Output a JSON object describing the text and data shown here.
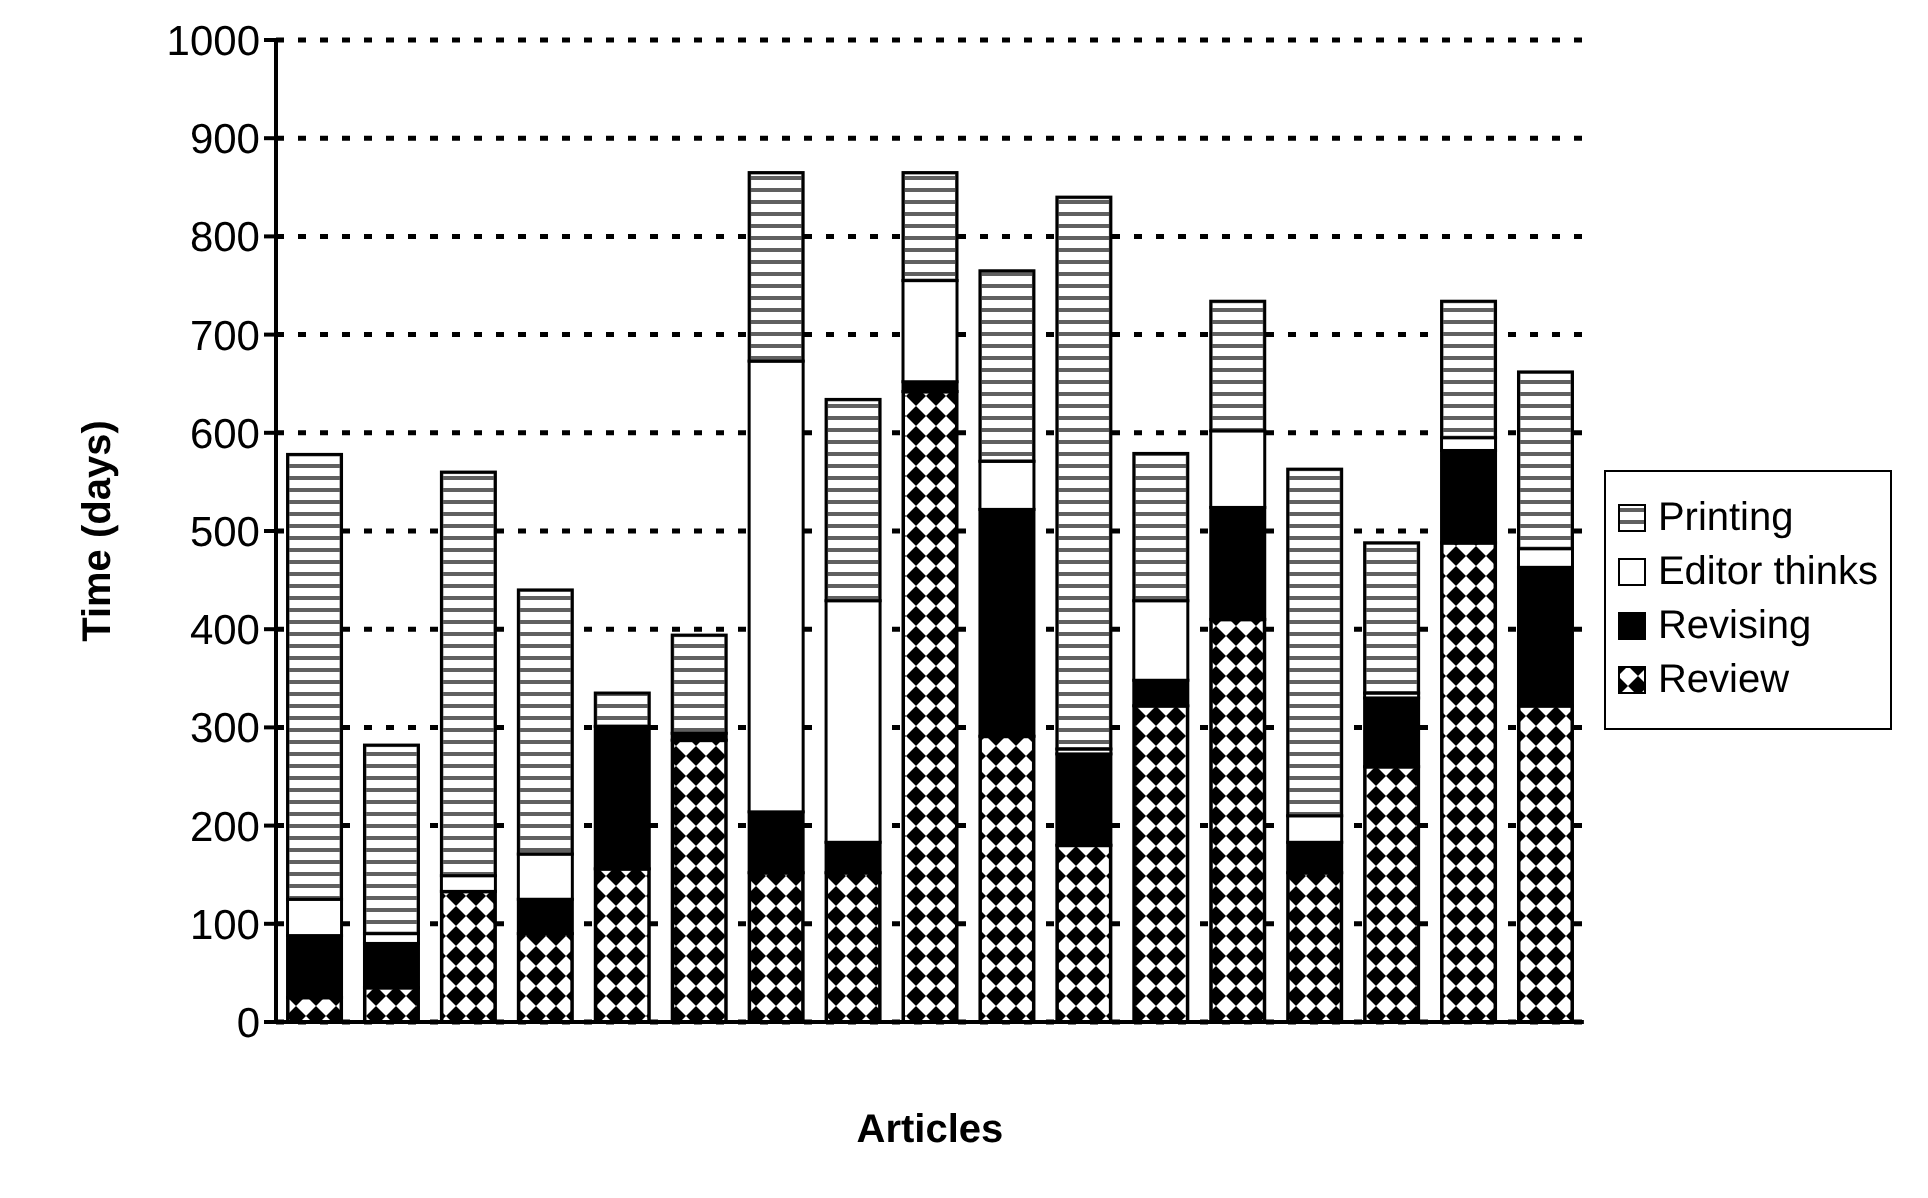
{
  "chart_data": {
    "type": "bar",
    "stacked": true,
    "xlabel": "Articles",
    "ylabel": "Time (days)",
    "categories": [
      null,
      null,
      null,
      null,
      null,
      null,
      null,
      null,
      null,
      null,
      null,
      null,
      null,
      null,
      null,
      null,
      null
    ],
    "series": [
      {
        "name": "Review",
        "color": "#000000",
        "values": [
          25,
          35,
          133,
          90,
          156,
          287,
          152,
          152,
          642,
          291,
          180,
          322,
          410,
          152,
          260,
          488,
          322
        ]
      },
      {
        "name": "Revising",
        "color": "#000000",
        "values": [
          63,
          45,
          0,
          35,
          145,
          7,
          62,
          31,
          10,
          231,
          93,
          26,
          114,
          31,
          70,
          94,
          141
        ]
      },
      {
        "name": "Editor thinks",
        "color": "#ffffff",
        "values": [
          37,
          10,
          16,
          46,
          0,
          0,
          459,
          246,
          103,
          49,
          5,
          81,
          78,
          27,
          5,
          13,
          19
        ]
      },
      {
        "name": "Printing",
        "color": "#606060",
        "values": [
          453,
          192,
          411,
          269,
          34,
          100,
          192,
          205,
          110,
          194,
          562,
          150,
          132,
          353,
          153,
          139,
          180
        ]
      }
    ],
    "ylim": [
      0,
      1000
    ],
    "yticks": [
      0,
      100,
      200,
      300,
      400,
      500,
      600,
      700,
      800,
      900,
      1000
    ],
    "grid": "y",
    "legend": "right"
  }
}
